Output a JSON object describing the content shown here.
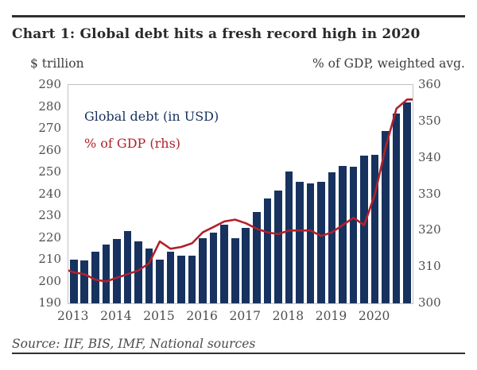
{
  "title": "Chart 1: Global debt hits a fresh record high in 2020",
  "axes": {
    "left_title": "$ trillion",
    "right_title": "% of GDP, weighted avg."
  },
  "legend": {
    "bars_label": "Global debt (in USD)",
    "line_label": "% of GDP (rhs)"
  },
  "source": "Source: IIF, BIS, IMF, National sources",
  "colors": {
    "bar": "#17325e",
    "line": "#b1212b",
    "legend_bar_text": "#17325e",
    "legend_line_text": "#b1212b",
    "axis_text": "#4e4e4e",
    "title_text": "#2a2a2a"
  },
  "chart_data": {
    "type": "combo",
    "x_years": [
      "2013",
      "2014",
      "2015",
      "2016",
      "2017",
      "2018",
      "2019",
      "2020"
    ],
    "bars_per_year": 4,
    "series": [
      {
        "name": "Global debt (in USD)",
        "type": "bar",
        "axis": "left",
        "unit": "$ trillion",
        "values": [
          210,
          209.5,
          213.5,
          217,
          219.5,
          223,
          218.5,
          215,
          210,
          213.5,
          212,
          212,
          220,
          222.5,
          226,
          220,
          224.5,
          232,
          238,
          241.5,
          250.5,
          245.5,
          245,
          245.5,
          250,
          253,
          252.5,
          257.5,
          258,
          269,
          277,
          282
        ]
      },
      {
        "name": "% of GDP (rhs)",
        "type": "line",
        "axis": "right",
        "unit": "% of GDP, weighted avg.",
        "values": [
          308.5,
          308,
          306.5,
          306,
          307,
          308,
          309,
          311,
          317,
          315,
          315.5,
          316.5,
          319.5,
          321,
          322.5,
          323,
          322,
          320.5,
          319.5,
          319,
          320,
          320,
          320,
          318.5,
          319.5,
          321.5,
          323.5,
          321.5,
          330,
          343,
          353.5,
          356
        ]
      }
    ],
    "left_axis": {
      "min": 190,
      "max": 290,
      "step": 10,
      "ticks": [
        "290",
        "280",
        "270",
        "260",
        "250",
        "240",
        "230",
        "220",
        "210",
        "200",
        "190"
      ]
    },
    "right_axis": {
      "min": 300,
      "max": 360,
      "step": 10,
      "ticks": [
        "360",
        "350",
        "340",
        "330",
        "320",
        "310",
        "300"
      ]
    },
    "grid": false,
    "legend_position": "inside-top-left"
  }
}
